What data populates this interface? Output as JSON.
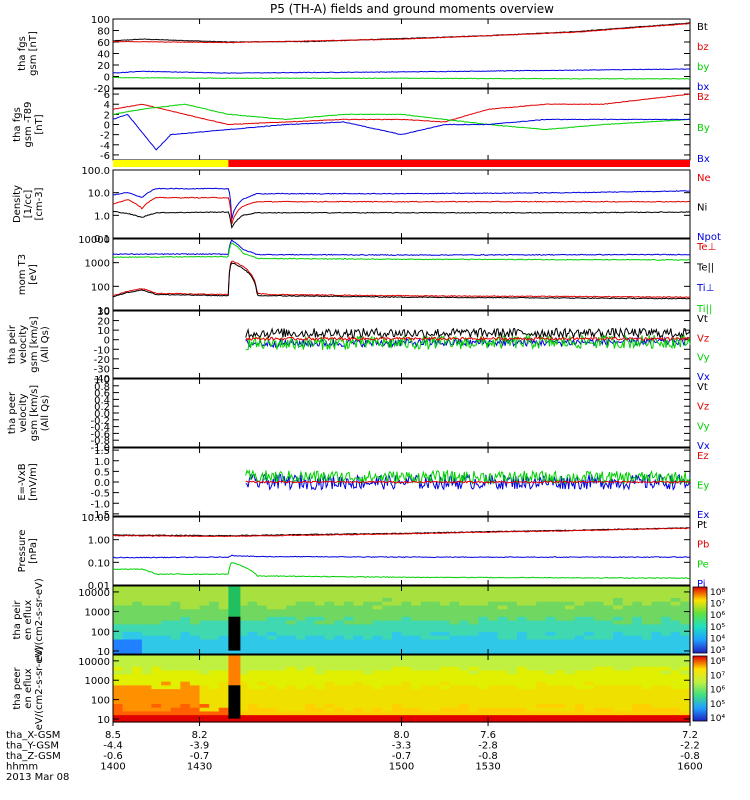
{
  "title": "P5 (TH-A) fields and ground moments overview",
  "colors": {
    "black": "#000000",
    "red": "#e00000",
    "green": "#00d000",
    "blue": "#0000e0",
    "yellow": "#ffff00",
    "bar_red": "#ff0000"
  },
  "status_bar": {
    "segments": [
      {
        "from": 1400,
        "to": 1440,
        "color": "yellow"
      },
      {
        "from": 1440,
        "to": 1600,
        "color": "bar_red"
      }
    ]
  },
  "time_axis": {
    "range": [
      1400,
      1600
    ],
    "ticks": [
      1400,
      1430,
      1500,
      1530,
      1600
    ]
  },
  "ephemeris": {
    "rows": [
      {
        "label": "tha_X-GSM",
        "values": [
          "8.5",
          "8.2",
          "8.0",
          "7.6",
          "7.2"
        ]
      },
      {
        "label": "tha_Y-GSM",
        "values": [
          "-4.4",
          "-3.9",
          "-3.3",
          "-2.8",
          "-2.2"
        ]
      },
      {
        "label": "tha_Z-GSM",
        "values": [
          "-0.6",
          "-0.7",
          "-0.7",
          "-0.8",
          "-0.8"
        ]
      },
      {
        "label": "hhmm",
        "values": [
          "1400",
          "1430",
          "1500",
          "1530",
          "1600"
        ]
      }
    ],
    "date": "2013 Mar 08"
  },
  "chart_data": [
    {
      "type": "line",
      "ylabel": "tha fgs gsm [nT]",
      "ylim": [
        -20,
        100
      ],
      "y_ticks": [
        "100",
        "80",
        "60",
        "40",
        "20",
        "0",
        "-20"
      ],
      "legend": [
        {
          "label": "Bt",
          "color": "black"
        },
        {
          "label": "bz",
          "color": "red"
        },
        {
          "label": "by",
          "color": "green"
        },
        {
          "label": "bx",
          "color": "blue"
        }
      ],
      "series": [
        {
          "name": "Bt",
          "color": "black",
          "x": [
            1400,
            1410,
            1440,
            1470,
            1500,
            1530,
            1560,
            1600
          ],
          "y": [
            62,
            65,
            60,
            61,
            66,
            71,
            78,
            93
          ]
        },
        {
          "name": "bz",
          "color": "red",
          "x": [
            1400,
            1440,
            1500,
            1560,
            1600
          ],
          "y": [
            61,
            59,
            65,
            77,
            92
          ]
        },
        {
          "name": "bx",
          "color": "blue",
          "x": [
            1400,
            1410,
            1440,
            1500,
            1560,
            1600
          ],
          "y": [
            6,
            9,
            6,
            8,
            11,
            13
          ]
        },
        {
          "name": "by",
          "color": "green",
          "x": [
            1400,
            1440,
            1500,
            1560,
            1600
          ],
          "y": [
            -2,
            -3,
            -3,
            -4,
            -4
          ]
        }
      ]
    },
    {
      "type": "line",
      "ylabel": "tha fgs gsm -T89 [nT]",
      "ylim": [
        -7,
        7
      ],
      "y_ticks": [
        "6",
        "4",
        "2",
        "0",
        "-2",
        "-4",
        "-6"
      ],
      "legend": [
        {
          "label": "Bz",
          "color": "red"
        },
        {
          "label": "By",
          "color": "green"
        },
        {
          "label": "Bx",
          "color": "blue"
        }
      ],
      "series": [
        {
          "name": "Bz",
          "color": "red",
          "x": [
            1400,
            1410,
            1425,
            1440,
            1460,
            1480,
            1500,
            1515,
            1530,
            1550,
            1570,
            1600
          ],
          "y": [
            3,
            4,
            2,
            0,
            0.5,
            1,
            1,
            0.5,
            3,
            4,
            4,
            6
          ]
        },
        {
          "name": "By",
          "color": "green",
          "x": [
            1400,
            1410,
            1425,
            1440,
            1460,
            1480,
            1500,
            1515,
            1530,
            1550,
            1570,
            1600
          ],
          "y": [
            2,
            3,
            4,
            2,
            1,
            2,
            2,
            1,
            0,
            -1,
            0,
            1
          ]
        },
        {
          "name": "Bx",
          "color": "blue",
          "x": [
            1400,
            1405,
            1415,
            1420,
            1440,
            1460,
            1480,
            1500,
            1515,
            1530,
            1550,
            1570,
            1600
          ],
          "y": [
            1,
            2,
            -5,
            -2,
            -1,
            0,
            0.5,
            -2,
            0,
            0,
            1,
            1,
            1
          ]
        }
      ]
    },
    {
      "type": "line",
      "ylabel": "Density [1/cc] [cm-3]",
      "yscale": "log",
      "ylim": [
        0.1,
        100
      ],
      "y_ticks": [
        "100.0",
        "10.0",
        "1.0",
        "0.1"
      ],
      "legend": [
        {
          "label": "Ne",
          "color": "red"
        },
        {
          "label": "Ni",
          "color": "black"
        },
        {
          "label": "Npot",
          "color": "blue"
        }
      ],
      "series": [
        {
          "name": "Npot",
          "color": "blue",
          "x": [
            1400,
            1405,
            1410,
            1415,
            1440,
            1441,
            1445,
            1450,
            1500,
            1560,
            1600
          ],
          "y": [
            8,
            10,
            6,
            15,
            15,
            0.5,
            5,
            9,
            9,
            10,
            12
          ]
        },
        {
          "name": "Ne",
          "color": "red",
          "x": [
            1400,
            1405,
            1410,
            1415,
            1440,
            1441,
            1445,
            1450,
            1500,
            1560,
            1600
          ],
          "y": [
            3,
            5,
            2,
            6,
            6,
            0.3,
            2.5,
            4,
            4,
            4,
            4
          ]
        },
        {
          "name": "Ni",
          "color": "black",
          "x": [
            1400,
            1405,
            1410,
            1415,
            1440,
            1441,
            1445,
            1450,
            1500,
            1560,
            1600
          ],
          "y": [
            1.5,
            1.2,
            0.8,
            1.3,
            1.4,
            0.25,
            1.0,
            1.3,
            1.3,
            1.3,
            1.4
          ]
        }
      ]
    },
    {
      "type": "line",
      "ylabel": "mom T3 [eV]",
      "yscale": "log",
      "ylim": [
        10,
        10000
      ],
      "y_ticks": [
        "10000",
        "1000",
        "100",
        "10"
      ],
      "legend": [
        {
          "label": "Te⊥",
          "color": "red"
        },
        {
          "label": "Te||",
          "color": "black"
        },
        {
          "label": "Ti⊥",
          "color": "blue"
        },
        {
          "label": "Ti||",
          "color": "green"
        }
      ],
      "series": [
        {
          "name": "Ti⊥",
          "color": "blue",
          "x": [
            1400,
            1440,
            1441,
            1445,
            1450,
            1500,
            1600
          ],
          "y": [
            2300,
            2300,
            9000,
            3500,
            2200,
            2100,
            2200
          ]
        },
        {
          "name": "Ti||",
          "color": "green",
          "x": [
            1400,
            1440,
            1441,
            1445,
            1450,
            1500,
            1600
          ],
          "y": [
            1700,
            1800,
            7000,
            2500,
            1500,
            1400,
            1300
          ]
        },
        {
          "name": "Te⊥",
          "color": "red",
          "x": [
            1400,
            1405,
            1410,
            1415,
            1440,
            1441,
            1450,
            1455,
            1500,
            1600
          ],
          "y": [
            40,
            60,
            80,
            50,
            45,
            1200,
            50,
            45,
            40,
            35
          ]
        },
        {
          "name": "Te||",
          "color": "black",
          "x": [
            1400,
            1405,
            1410,
            1415,
            1440,
            1441,
            1450,
            1455,
            1500,
            1600
          ],
          "y": [
            35,
            55,
            70,
            45,
            40,
            1000,
            40,
            40,
            35,
            30
          ]
        }
      ]
    },
    {
      "type": "line",
      "ylabel": "tha peir velocity gsm [km/s] (All Qs)",
      "ylim": [
        -40,
        30
      ],
      "y_ticks": [
        "30",
        "20",
        "10",
        "0",
        "-10",
        "-20",
        "-30",
        "-40"
      ],
      "legend": [
        {
          "label": "Vt",
          "color": "black"
        },
        {
          "label": "Vz",
          "color": "red"
        },
        {
          "label": "Vy",
          "color": "green"
        },
        {
          "label": "Vx",
          "color": "blue"
        }
      ],
      "series": [
        {
          "name": "Vt",
          "color": "black",
          "x": [
            1446,
            1600
          ],
          "y": [
            7,
            7
          ],
          "noise": 5
        },
        {
          "name": "Vx",
          "color": "blue",
          "x": [
            1446,
            1600
          ],
          "y": [
            -4,
            -2
          ],
          "noise": 4
        },
        {
          "name": "Vy",
          "color": "green",
          "x": [
            1446,
            1600
          ],
          "y": [
            -4,
            -2
          ],
          "noise": 7
        },
        {
          "name": "Vz",
          "color": "red",
          "x": [
            1446,
            1600
          ],
          "y": [
            1,
            1
          ],
          "noise": 1.5
        }
      ]
    },
    {
      "type": "line",
      "ylabel": "tha peer velocity gsm [km/s] (All Qs)",
      "ylim": [
        -1,
        1
      ],
      "y_ticks": [
        "1.0",
        "0.8",
        "0.6",
        "0.4",
        "0.2",
        "0.0",
        "-0.2",
        "-0.4",
        "-0.6",
        "-0.8",
        "-1.0"
      ],
      "legend": [
        {
          "label": "Vt",
          "color": "black"
        },
        {
          "label": "Vz",
          "color": "red"
        },
        {
          "label": "Vy",
          "color": "green"
        },
        {
          "label": "Vx",
          "color": "blue"
        }
      ],
      "series": []
    },
    {
      "type": "line",
      "ylabel": "E=-VxB [mV/m]",
      "ylim": [
        -1.6,
        1.6
      ],
      "y_ticks": [
        "1.5",
        "1.0",
        "0.5",
        "0.0",
        "-0.5",
        "-1.0",
        "-1.5"
      ],
      "legend": [
        {
          "label": "Ez",
          "color": "red"
        },
        {
          "label": "Ey",
          "color": "green"
        },
        {
          "label": "Ex",
          "color": "blue"
        }
      ],
      "series": [
        {
          "name": "Ex",
          "color": "blue",
          "x": [
            1446,
            1600
          ],
          "y": [
            0,
            0
          ],
          "noise": 0.35
        },
        {
          "name": "Ey",
          "color": "green",
          "x": [
            1446,
            1600
          ],
          "y": [
            0.25,
            0.2
          ],
          "noise": 0.3
        },
        {
          "name": "Ez",
          "color": "red",
          "x": [
            1446,
            1600
          ],
          "y": [
            0,
            0
          ],
          "noise": 0.04
        }
      ]
    },
    {
      "type": "line",
      "ylabel": "Pressure [nPa]",
      "yscale": "log",
      "ylim": [
        0.01,
        10
      ],
      "y_ticks": [
        "10.00",
        "1.00",
        "0.10",
        "0.01"
      ],
      "legend": [
        {
          "label": "Pt",
          "color": "black"
        },
        {
          "label": "Pb",
          "color": "red"
        },
        {
          "label": "Pe",
          "color": "green"
        },
        {
          "label": "Pi",
          "color": "blue"
        }
      ],
      "series": [
        {
          "name": "Pt",
          "color": "black",
          "x": [
            1400,
            1440,
            1500,
            1560,
            1600
          ],
          "y": [
            1.6,
            1.5,
            1.9,
            2.6,
            3.3
          ]
        },
        {
          "name": "Pb",
          "color": "red",
          "x": [
            1400,
            1440,
            1500,
            1560,
            1600
          ],
          "y": [
            1.5,
            1.4,
            1.8,
            2.5,
            3.2
          ]
        },
        {
          "name": "Pi",
          "color": "blue",
          "x": [
            1400,
            1440,
            1441,
            1450,
            1500,
            1600
          ],
          "y": [
            0.16,
            0.17,
            0.2,
            0.18,
            0.17,
            0.17
          ]
        },
        {
          "name": "Pe",
          "color": "green",
          "x": [
            1400,
            1410,
            1415,
            1440,
            1441,
            1450,
            1500,
            1600
          ],
          "y": [
            0.05,
            0.05,
            0.03,
            0.03,
            0.1,
            0.025,
            0.022,
            0.02
          ]
        }
      ]
    },
    {
      "type": "heatmap",
      "ylabel": "tha peir en eflux eV/(cm2-s-sr-eV)",
      "yscale": "log",
      "ylim": [
        7,
        20000
      ],
      "y_ticks": [
        "10000",
        "1000",
        "100",
        "10"
      ],
      "colorbar_ticks": [
        "10⁸",
        "10⁷",
        "10⁶",
        "10⁵",
        "10⁴",
        "10³"
      ],
      "description_levels": {
        "low_energy": "cyan",
        "mid_energy": "green",
        "high_energy": "green-yellow"
      }
    },
    {
      "type": "heatmap",
      "ylabel": "tha peer en eflux eV/(cm2-s-sr-eV)",
      "yscale": "log",
      "ylim": [
        7,
        20000
      ],
      "y_ticks": [
        "10000",
        "1000",
        "100",
        "10"
      ],
      "colorbar_ticks": [
        "10⁸",
        "10⁷",
        "10⁶",
        "10⁵",
        "10⁴"
      ],
      "description_levels": {
        "low_energy": "red",
        "mid_energy": "yellow",
        "high_energy": "yellow-green"
      }
    }
  ]
}
